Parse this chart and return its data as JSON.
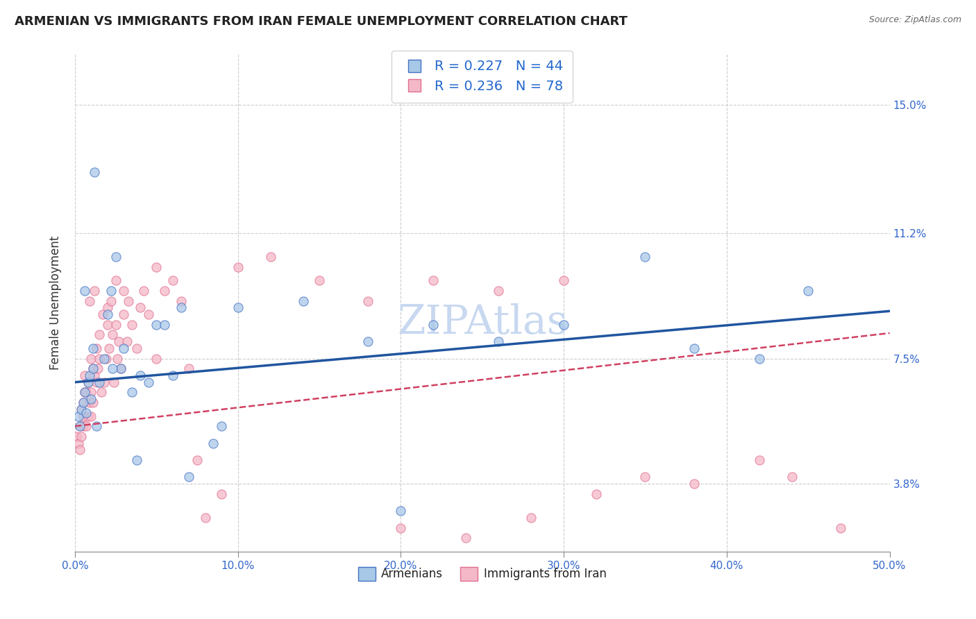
{
  "title": "ARMENIAN VS IMMIGRANTS FROM IRAN FEMALE UNEMPLOYMENT CORRELATION CHART",
  "source": "Source: ZipAtlas.com",
  "ylabel": "Female Unemployment",
  "ytick_labels": [
    "3.8%",
    "7.5%",
    "11.2%",
    "15.0%"
  ],
  "ytick_values": [
    3.8,
    7.5,
    11.2,
    15.0
  ],
  "xlim": [
    0.0,
    50.0
  ],
  "ylim": [
    1.8,
    16.5
  ],
  "xtick_values": [
    0,
    10,
    20,
    30,
    40,
    50
  ],
  "xtick_labels": [
    "0.0%",
    "10.0%",
    "20.0%",
    "30.0%",
    "40.0%",
    "50.0%"
  ],
  "legend_r1": "R = 0.227",
  "legend_n1": "N = 44",
  "legend_r2": "R = 0.236",
  "legend_n2": "N = 78",
  "legend_label1": "Armenians",
  "legend_label2": "Immigrants from Iran",
  "color_blue": "#a8c8e8",
  "color_pink": "#f4b8c8",
  "edge_blue": "#4472c4",
  "edge_pink": "#e07090",
  "trendline_blue": "#2055a0",
  "trendline_pink": "#d04060",
  "watermark": "ZIPAtlas",
  "watermark_color": "#c8d8f0",
  "armenian_x": [
    0.2,
    0.3,
    0.4,
    0.5,
    0.6,
    0.7,
    0.8,
    0.9,
    1.0,
    1.1,
    1.2,
    1.3,
    1.5,
    1.8,
    2.0,
    2.2,
    2.5,
    2.8,
    3.0,
    3.5,
    4.0,
    5.0,
    5.5,
    6.0,
    7.0,
    8.5,
    10.0,
    14.0,
    18.0,
    22.0,
    26.0,
    30.0,
    35.0,
    38.0,
    42.0,
    45.0,
    0.6,
    1.1,
    2.3,
    3.8,
    4.5,
    6.5,
    9.0,
    20.0
  ],
  "armenian_y": [
    5.8,
    5.5,
    6.0,
    6.2,
    6.5,
    5.9,
    6.8,
    7.0,
    6.3,
    7.2,
    13.0,
    5.5,
    6.8,
    7.5,
    8.8,
    9.5,
    10.5,
    7.2,
    7.8,
    6.5,
    7.0,
    8.5,
    8.5,
    7.0,
    4.0,
    5.0,
    9.0,
    9.2,
    8.0,
    8.5,
    8.0,
    8.5,
    10.5,
    7.8,
    7.5,
    9.5,
    9.5,
    7.8,
    7.2,
    4.5,
    6.8,
    9.0,
    5.5,
    3.0
  ],
  "iran_x": [
    0.1,
    0.2,
    0.3,
    0.3,
    0.4,
    0.4,
    0.5,
    0.5,
    0.5,
    0.6,
    0.6,
    0.7,
    0.7,
    0.8,
    0.8,
    0.9,
    0.9,
    1.0,
    1.0,
    1.0,
    1.1,
    1.1,
    1.2,
    1.2,
    1.3,
    1.3,
    1.4,
    1.5,
    1.5,
    1.6,
    1.7,
    1.8,
    1.9,
    2.0,
    2.0,
    2.1,
    2.2,
    2.3,
    2.4,
    2.5,
    2.5,
    2.6,
    2.7,
    2.8,
    3.0,
    3.0,
    3.2,
    3.3,
    3.5,
    3.8,
    4.0,
    4.2,
    4.5,
    5.0,
    5.0,
    5.5,
    6.0,
    6.5,
    7.0,
    7.5,
    8.0,
    9.0,
    10.0,
    12.0,
    15.0,
    18.0,
    20.0,
    22.0,
    24.0,
    26.0,
    28.0,
    30.0,
    32.0,
    35.0,
    38.0,
    42.0,
    44.0,
    47.0
  ],
  "iran_y": [
    5.2,
    5.0,
    4.8,
    5.5,
    5.2,
    6.0,
    5.5,
    6.2,
    5.8,
    6.5,
    7.0,
    5.5,
    6.5,
    5.8,
    6.8,
    6.2,
    9.2,
    5.8,
    6.5,
    7.5,
    6.2,
    7.2,
    7.0,
    9.5,
    6.8,
    7.8,
    7.2,
    7.5,
    8.2,
    6.5,
    8.8,
    6.8,
    7.5,
    8.5,
    9.0,
    7.8,
    9.2,
    8.2,
    6.8,
    9.8,
    8.5,
    7.5,
    8.0,
    7.2,
    8.8,
    9.5,
    8.0,
    9.2,
    8.5,
    7.8,
    9.0,
    9.5,
    8.8,
    10.2,
    7.5,
    9.5,
    9.8,
    9.2,
    7.2,
    4.5,
    2.8,
    3.5,
    10.2,
    10.5,
    9.8,
    9.2,
    2.5,
    9.8,
    2.2,
    9.5,
    2.8,
    9.8,
    3.5,
    4.0,
    3.8,
    4.5,
    4.0,
    2.5
  ],
  "trendline_blue_intercept": 6.8,
  "trendline_blue_slope": 0.042,
  "trendline_pink_intercept": 5.5,
  "trendline_pink_slope": 0.055
}
